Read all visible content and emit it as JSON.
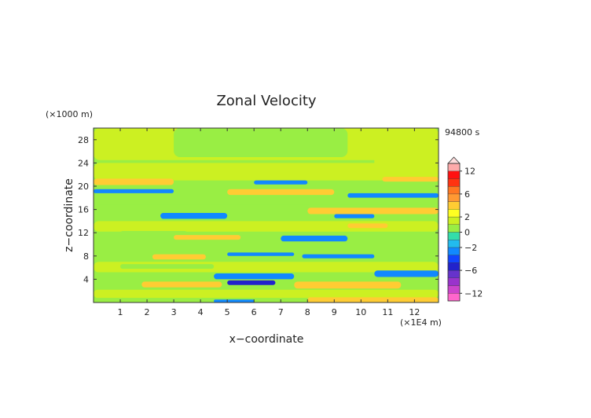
{
  "chart_data": {
    "type": "heatmap",
    "title": "Zonal Velocity",
    "xlabel": "x−coordinate",
    "ylabel": "z−coordinate",
    "x_unit_label": "(×1E4 m)",
    "y_unit_label": "(×1000 m)",
    "time_label": "94800 s",
    "xlim": [
      0,
      12.9
    ],
    "ylim": [
      0,
      30
    ],
    "x_ticks": [
      "1",
      "2",
      "3",
      "4",
      "5",
      "6",
      "7",
      "8",
      "9",
      "10",
      "11",
      "12"
    ],
    "y_ticks": [
      "4",
      "8",
      "12",
      "16",
      "20",
      "24",
      "28"
    ],
    "colorbar": {
      "tick_labels": [
        "12",
        "6",
        "2",
        "0",
        "−2",
        "−6",
        "−12"
      ],
      "tick_values": [
        12,
        6,
        2,
        0,
        -2,
        -6,
        -12
      ],
      "levels": [
        -14,
        -12,
        -10,
        -8,
        -6,
        -4,
        -3,
        -2,
        -1,
        0,
        1,
        2,
        3,
        4,
        6,
        8,
        10,
        12,
        14
      ],
      "colors": [
        "#ff66cc",
        "#cc44cc",
        "#9933cc",
        "#6633cc",
        "#2222cc",
        "#1144ff",
        "#1188ff",
        "#22bbee",
        "#33ddaa",
        "#99ee44",
        "#ccf022",
        "#ffff22",
        "#ffcc33",
        "#ff9933",
        "#ff7722",
        "#ff3311",
        "#ff1111",
        "#ffaaaa"
      ]
    },
    "bands": [
      {
        "x0": 0,
        "x1": 12.9,
        "y0": 0,
        "y1": 30,
        "value": 0.3
      },
      {
        "x0": 0,
        "x1": 12.9,
        "y0": 24.5,
        "y1": 30,
        "value": 1.5
      },
      {
        "x0": 3,
        "x1": 9.5,
        "y0": 25,
        "y1": 30,
        "value": 0.3
      },
      {
        "x0": 10.5,
        "x1": 12.9,
        "y0": 23,
        "y1": 30,
        "value": 1.5
      },
      {
        "x0": 0,
        "x1": 12.9,
        "y0": 21,
        "y1": 24,
        "value": 1.5
      },
      {
        "x0": 0,
        "x1": 3,
        "y0": 20.2,
        "y1": 21.3,
        "value": 3.5
      },
      {
        "x0": 0,
        "x1": 3,
        "y0": 18.8,
        "y1": 19.5,
        "value": -2.5
      },
      {
        "x0": 5,
        "x1": 9,
        "y0": 18.5,
        "y1": 19.5,
        "value": 3.5
      },
      {
        "x0": 6,
        "x1": 8,
        "y0": 20.3,
        "y1": 21,
        "value": -2.5
      },
      {
        "x0": 10.8,
        "x1": 12.9,
        "y0": 20.8,
        "y1": 21.6,
        "value": 3.5
      },
      {
        "x0": 9.5,
        "x1": 12.9,
        "y0": 18,
        "y1": 18.8,
        "value": -2.5
      },
      {
        "x0": 0,
        "x1": 12.9,
        "y0": 16.8,
        "y1": 18,
        "value": 0.3
      },
      {
        "x0": 8,
        "x1": 12.9,
        "y0": 15.2,
        "y1": 16.3,
        "value": 3.5
      },
      {
        "x0": 2.5,
        "x1": 5,
        "y0": 14.4,
        "y1": 15.4,
        "value": -2.5
      },
      {
        "x0": 9,
        "x1": 10.5,
        "y0": 14.5,
        "y1": 15.2,
        "value": -2.5
      },
      {
        "x0": 0,
        "x1": 12.9,
        "y0": 12.2,
        "y1": 14,
        "value": 1.5
      },
      {
        "x0": 9.5,
        "x1": 11,
        "y0": 12.8,
        "y1": 13.6,
        "value": 3.5
      },
      {
        "x0": 1,
        "x1": 3.5,
        "y0": 11.5,
        "y1": 12.3,
        "value": 0.3
      },
      {
        "x0": 7,
        "x1": 9.5,
        "y0": 10.5,
        "y1": 11.5,
        "value": -2.5
      },
      {
        "x0": 3,
        "x1": 5.5,
        "y0": 10.8,
        "y1": 11.6,
        "value": 3.5
      },
      {
        "x0": 0,
        "x1": 12.9,
        "y0": 8.8,
        "y1": 10.2,
        "value": 0.3
      },
      {
        "x0": 2.2,
        "x1": 4.2,
        "y0": 7.4,
        "y1": 8.3,
        "value": 3.5
      },
      {
        "x0": 5,
        "x1": 7.5,
        "y0": 8,
        "y1": 8.6,
        "value": -2.5
      },
      {
        "x0": 7.8,
        "x1": 10.5,
        "y0": 7.6,
        "y1": 8.3,
        "value": -2.5
      },
      {
        "x0": 0,
        "x1": 12.9,
        "y0": 5.2,
        "y1": 7,
        "value": 1.5
      },
      {
        "x0": 1,
        "x1": 4.5,
        "y0": 5.8,
        "y1": 6.6,
        "value": 0.3
      },
      {
        "x0": 4.5,
        "x1": 7.5,
        "y0": 4,
        "y1": 5,
        "value": -2.5
      },
      {
        "x0": 10.5,
        "x1": 12.9,
        "y0": 4.4,
        "y1": 5.5,
        "value": -2.5
      },
      {
        "x0": 1.8,
        "x1": 4.8,
        "y0": 2.6,
        "y1": 3.6,
        "value": 3.5
      },
      {
        "x0": 5,
        "x1": 6.8,
        "y0": 3,
        "y1": 3.8,
        "value": -4.5
      },
      {
        "x0": 7.5,
        "x1": 11.5,
        "y0": 2.4,
        "y1": 3.6,
        "value": 3.5
      },
      {
        "x0": 0,
        "x1": 12.9,
        "y0": 0.8,
        "y1": 2.2,
        "value": 1.5
      },
      {
        "x0": 8,
        "x1": 12.9,
        "y0": 0,
        "y1": 0.9,
        "value": 3.5
      },
      {
        "x0": 4.5,
        "x1": 6,
        "y0": 0,
        "y1": 0.5,
        "value": -2.5
      }
    ]
  }
}
